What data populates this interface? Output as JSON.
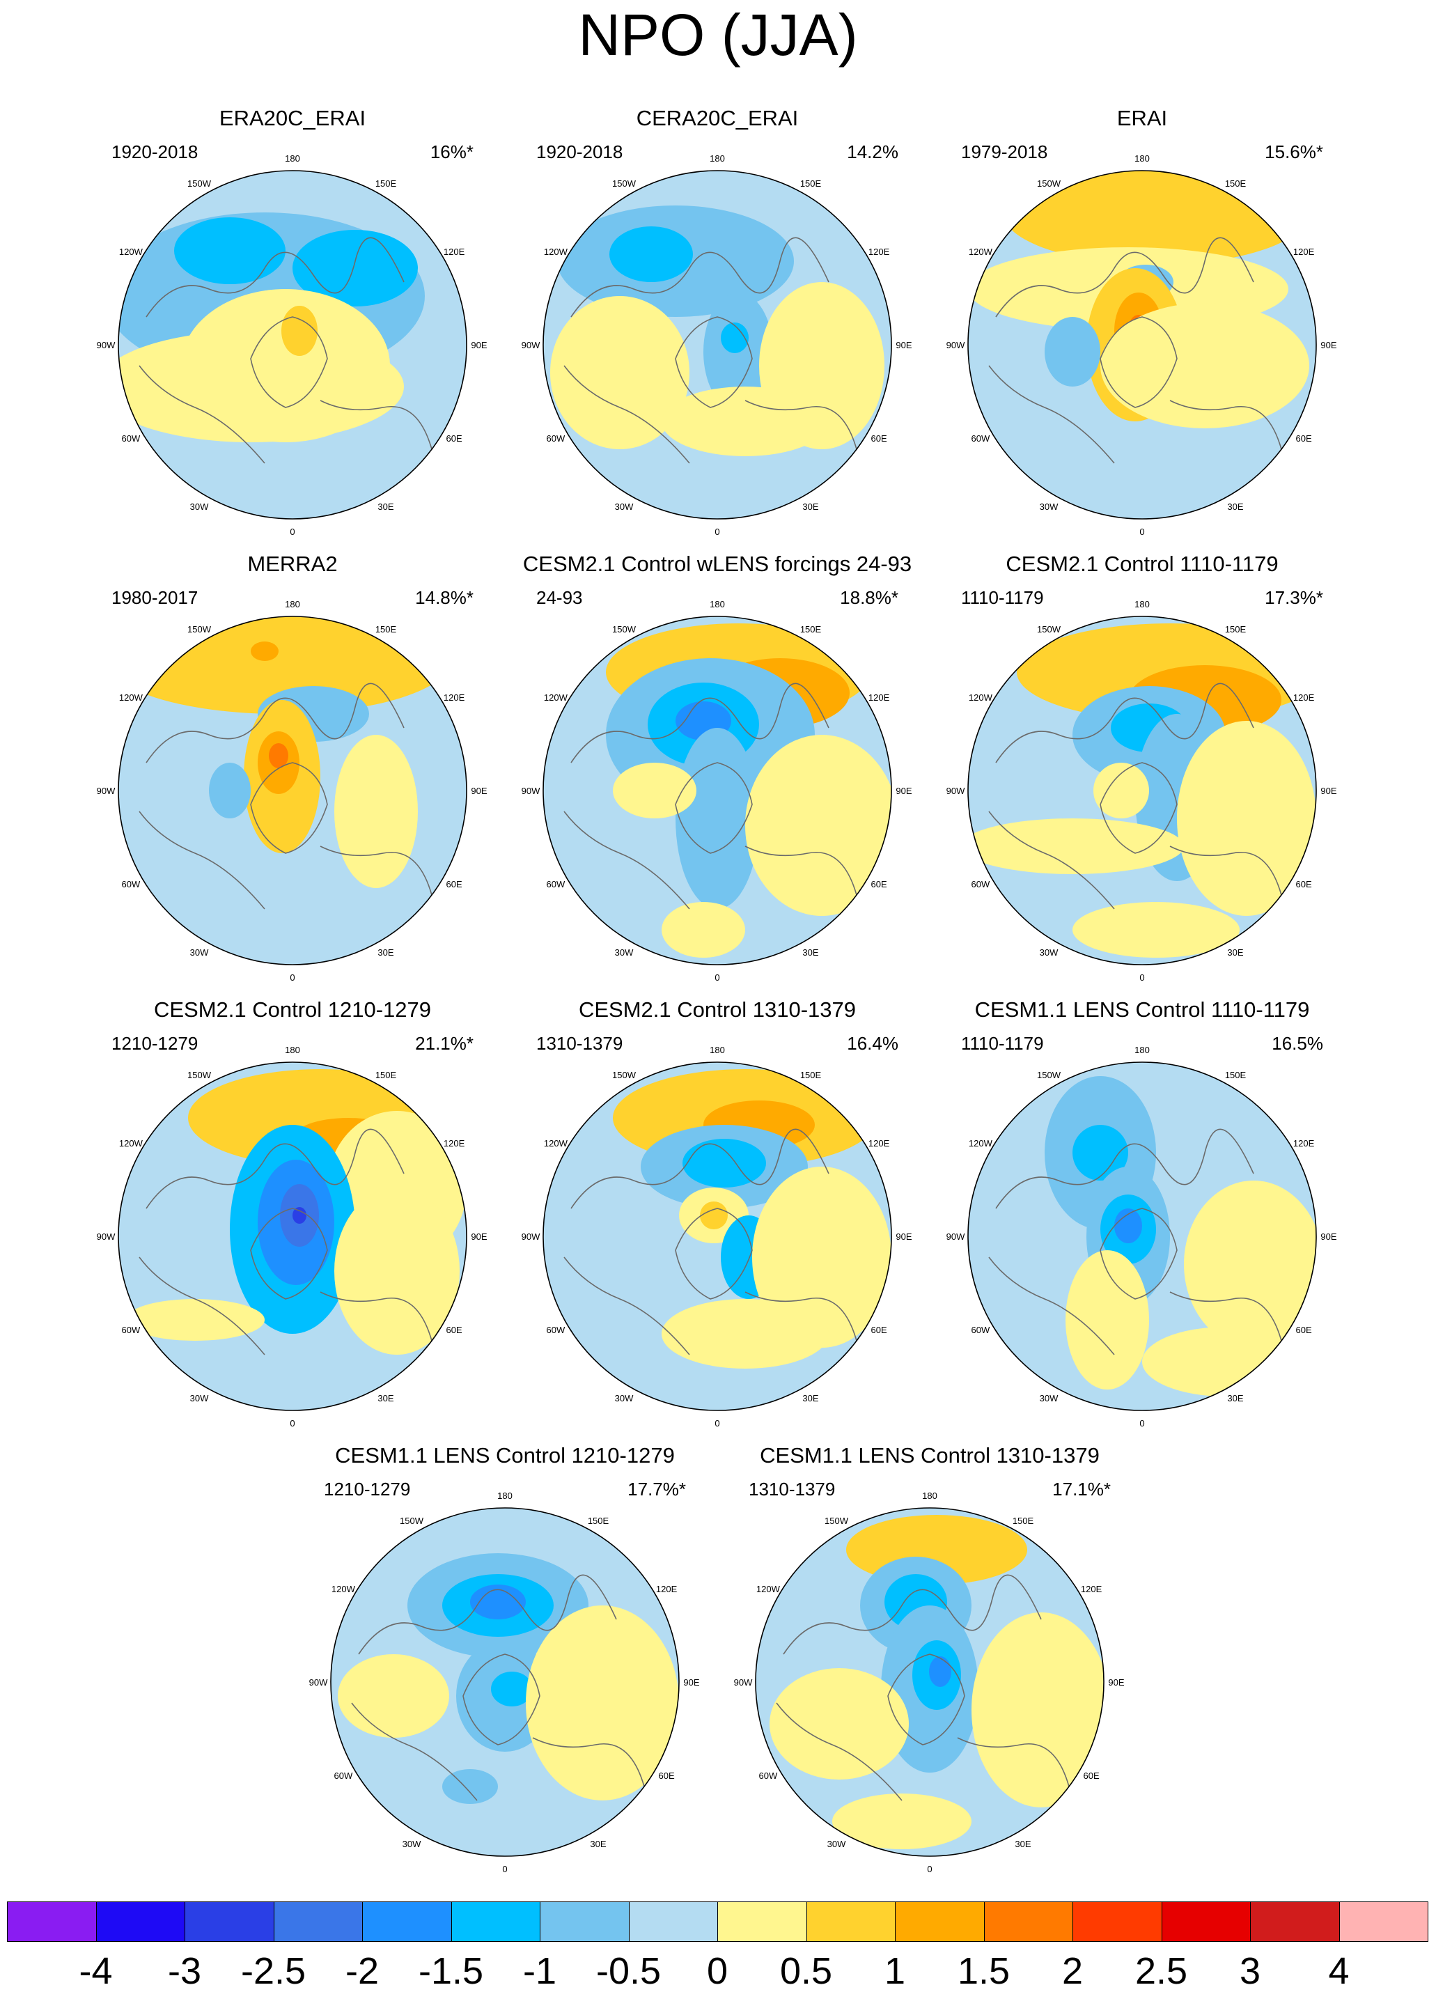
{
  "title": "NPO (JJA)",
  "lon_labels": [
    "180",
    "150E",
    "120E",
    "90E",
    "60E",
    "30E",
    "0",
    "30W",
    "60W",
    "90W",
    "120W",
    "150W"
  ],
  "panels": [
    {
      "title": "ERA20C_ERAI",
      "period": "1920-2018",
      "variance": "16%*"
    },
    {
      "title": "CERA20C_ERAI",
      "period": "1920-2018",
      "variance": "14.2%"
    },
    {
      "title": "ERAI",
      "period": "1979-2018",
      "variance": "15.6%*"
    },
    {
      "title": "MERRA2",
      "period": "1980-2017",
      "variance": "14.8%*"
    },
    {
      "title": "CESM2.1 Control wLENS forcings 24-93",
      "period": "24-93",
      "variance": "18.8%*"
    },
    {
      "title": "CESM2.1 Control 1110-1179",
      "period": "1110-1179",
      "variance": "17.3%*"
    },
    {
      "title": "CESM2.1 Control 1210-1279",
      "period": "1210-1279",
      "variance": "21.1%*"
    },
    {
      "title": "CESM2.1 Control 1310-1379",
      "period": "1310-1379",
      "variance": "16.4%"
    },
    {
      "title": "CESM1.1 LENS Control 1110-1179",
      "period": "1110-1179",
      "variance": "16.5%"
    },
    {
      "title": "CESM1.1 LENS Control 1210-1279",
      "period": "1210-1279",
      "variance": "17.7%*"
    },
    {
      "title": "CESM1.1 LENS Control 1310-1379",
      "period": "1310-1379",
      "variance": "17.1%*"
    }
  ],
  "colorbar": {
    "labels": [
      "-4",
      "-3",
      "-2.5",
      "-2",
      "-1.5",
      "-1",
      "-0.5",
      "0",
      "0.5",
      "1",
      "1.5",
      "2",
      "2.5",
      "3",
      "4"
    ],
    "colors": [
      "#8a1cf2",
      "#1e0af5",
      "#2a3fe6",
      "#3a76e8",
      "#1e90ff",
      "#00bfff",
      "#74c4ef",
      "#b4dcf2",
      "#fff68f",
      "#ffd22e",
      "#ffaa00",
      "#ff7a00",
      "#ff3b00",
      "#e60000",
      "#d11c1c",
      "#ffb3b3"
    ]
  },
  "palette": {
    "neg_light": "#b4dcf2",
    "neg_mid": "#74c4ef",
    "neg_1": "#00bfff",
    "neg_2": "#1e90ff",
    "neg_3": "#3a76e8",
    "pos_light": "#fff68f",
    "pos_1": "#ffd22e",
    "pos_2": "#ffaa00",
    "pos_3": "#ff7a00",
    "coast": "#6b6b6b"
  }
}
